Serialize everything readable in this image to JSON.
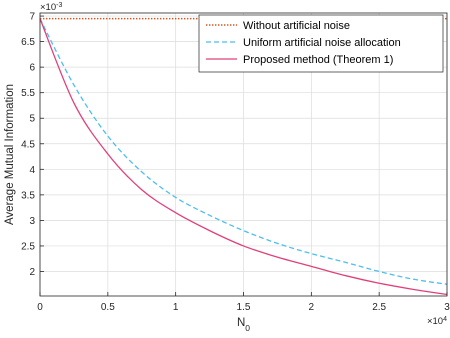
{
  "chart_data": {
    "type": "line",
    "xlabel": "N",
    "xlabel_sub": "0",
    "ylabel": "Average Mutual Information",
    "x_exponent_label": "×10",
    "x_exponent_power": "4",
    "y_exponent_label": "×10",
    "y_exponent_power": "-3",
    "xlim": [
      0,
      30000
    ],
    "ylim": [
      0.00152,
      0.00706
    ],
    "x_ticks": [
      0,
      5000,
      10000,
      15000,
      20000,
      25000,
      30000
    ],
    "x_tick_labels": [
      "0",
      "0.5",
      "1",
      "1.5",
      "2",
      "2.5",
      "3"
    ],
    "y_ticks": [
      0.002,
      0.0025,
      0.003,
      0.0035,
      0.004,
      0.0045,
      0.005,
      0.0055,
      0.006,
      0.0065,
      0.007
    ],
    "y_tick_labels": [
      "2",
      "2.5",
      "3",
      "3.5",
      "4",
      "4.5",
      "5",
      "5.5",
      "6",
      "6.5",
      "7"
    ],
    "grid": true,
    "legend_position": "top-right",
    "x": [
      0,
      2500,
      5000,
      7500,
      10000,
      12500,
      15000,
      17500,
      20000,
      22500,
      25000,
      27500,
      30000
    ],
    "series": [
      {
        "name": "Without artificial noise",
        "color": "#D95319",
        "style": "dotted",
        "values": [
          0.00695,
          0.00695,
          0.00695,
          0.00695,
          0.00695,
          0.00695,
          0.00695,
          0.00695,
          0.00695,
          0.00695,
          0.00695,
          0.00695,
          0.00695
        ]
      },
      {
        "name": "Uniform artificial noise allocation",
        "color": "#4DBEEE",
        "style": "dashed",
        "values": [
          0.00695,
          0.00565,
          0.00465,
          0.00395,
          0.00345,
          0.0031,
          0.0028,
          0.00255,
          0.00235,
          0.00218,
          0.002,
          0.00185,
          0.00175
        ]
      },
      {
        "name": "Proposed method (Theorem 1)",
        "color": "#E0407A",
        "style": "solid",
        "values": [
          0.00695,
          0.0053,
          0.0043,
          0.0036,
          0.00315,
          0.0028,
          0.0025,
          0.00228,
          0.0021,
          0.00192,
          0.00177,
          0.00165,
          0.00155
        ]
      }
    ]
  }
}
